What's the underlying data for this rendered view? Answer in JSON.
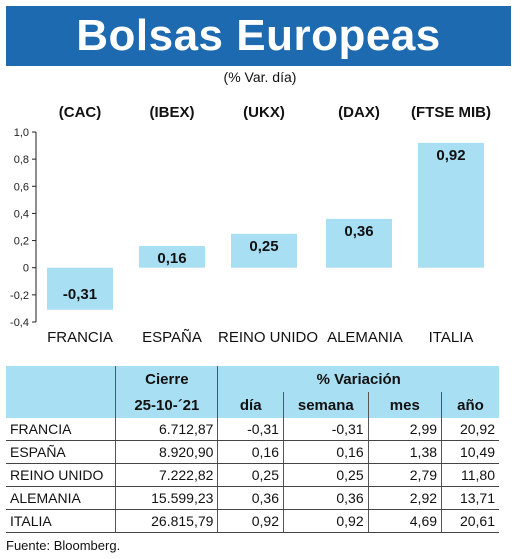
{
  "title": "Bolsas Europeas",
  "subtitle": "(% Var. día)",
  "chart_data": {
    "type": "bar",
    "categories": [
      "FRANCIA",
      "ESPAÑA",
      "REINO UNIDO",
      "ALEMANIA",
      "ITALIA"
    ],
    "indices": [
      "(CAC)",
      "(IBEX)",
      "(UKX)",
      "(DAX)",
      "(FTSE MIB)"
    ],
    "values": [
      -0.31,
      0.16,
      0.25,
      0.36,
      0.92
    ],
    "value_labels": [
      "-0,31",
      "0,16",
      "0,25",
      "0,36",
      "0,92"
    ],
    "ylim": [
      -0.4,
      1.0
    ],
    "yticks": [
      "1,0",
      "0,8",
      "0,6",
      "0,4",
      "0,2",
      "0",
      "-0,2",
      "-0,4"
    ],
    "ytick_values": [
      1.0,
      0.8,
      0.6,
      0.4,
      0.2,
      0,
      -0.2,
      -0.4
    ],
    "bar_color": "#a9dff3"
  },
  "table": {
    "header_cierre": "Cierre",
    "header_variacion": "% Variación",
    "header_fecha": "25-10-´21",
    "col_dia": "día",
    "col_semana": "semana",
    "col_mes": "mes",
    "col_ano": "año",
    "rows": [
      {
        "pais": "FRANCIA",
        "cierre": "6.712,87",
        "dia": "-0,31",
        "semana": "-0,31",
        "mes": "2,99",
        "ano": "20,92"
      },
      {
        "pais": "ESPAÑA",
        "cierre": "8.920,90",
        "dia": "0,16",
        "semana": "0,16",
        "mes": "1,38",
        "ano": "10,49"
      },
      {
        "pais": "REINO UNIDO",
        "cierre": "7.222,82",
        "dia": "0,25",
        "semana": "0,25",
        "mes": "2,79",
        "ano": "11,80"
      },
      {
        "pais": "ALEMANIA",
        "cierre": "15.599,23",
        "dia": "0,36",
        "semana": "0,36",
        "mes": "2,92",
        "ano": "13,71"
      },
      {
        "pais": "ITALIA",
        "cierre": "26.815,79",
        "dia": "0,92",
        "semana": "0,92",
        "mes": "4,69",
        "ano": "20,61"
      }
    ]
  },
  "source": "Fuente: Bloomberg.",
  "colors": {
    "banner": "#1e6ab0",
    "header_bg": "#a9dff3"
  }
}
